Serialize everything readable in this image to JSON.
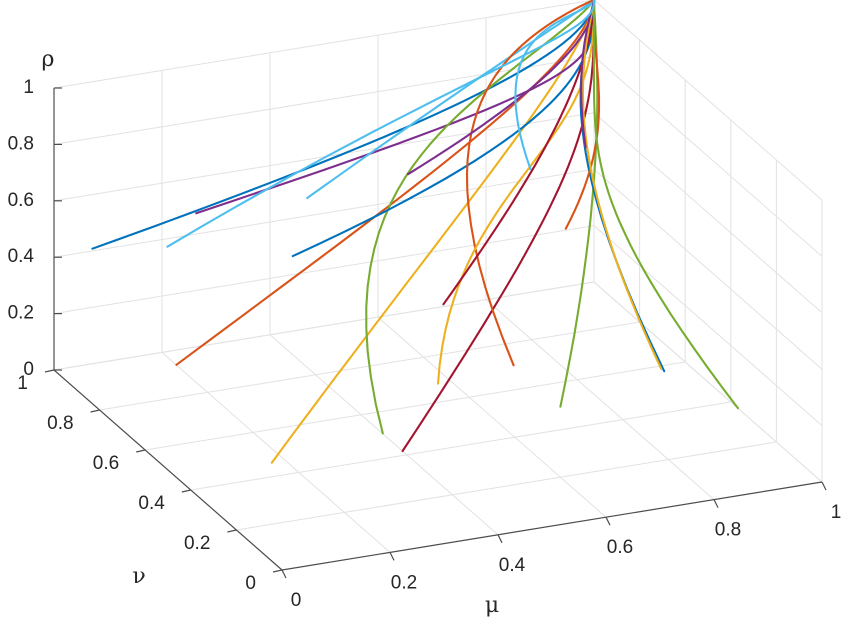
{
  "chart_data": {
    "type": "line",
    "subtype": "3d-trajectories",
    "title": "",
    "xlabel": "μ",
    "ylabel": "ν",
    "zlabel": "ρ",
    "xlim": [
      0,
      1
    ],
    "ylim": [
      0,
      1
    ],
    "zlim": [
      0,
      1
    ],
    "x_ticks": [
      "0",
      "0.2",
      "0.4",
      "0.6",
      "0.8",
      "1"
    ],
    "y_ticks": [
      "0",
      "0.2",
      "0.4",
      "0.6",
      "0.8",
      "1"
    ],
    "z_ticks": [
      "0",
      "0.2",
      "0.4",
      "0.6",
      "0.8",
      "1"
    ],
    "grid": true,
    "legend": "none",
    "endpoint": [
      1,
      1,
      1
    ],
    "colors": [
      "#0072BD",
      "#D95319",
      "#EDB120",
      "#7E2F8E",
      "#77AC30",
      "#4DBEEE",
      "#A2142F"
    ],
    "series": [
      {
        "start": [
          0.05,
          0.95,
          0.45
        ]
      },
      {
        "start": [
          0.1,
          0.7,
          0.2
        ]
      },
      {
        "start": [
          0.15,
          0.4,
          0.05
        ]
      },
      {
        "start": [
          0.2,
          0.85,
          0.6
        ]
      },
      {
        "start": [
          0.25,
          0.15,
          0.3
        ]
      },
      {
        "start": [
          0.3,
          0.6,
          0.8
        ]
      },
      {
        "start": [
          0.35,
          0.3,
          0.1
        ]
      },
      {
        "start": [
          0.4,
          0.9,
          0.35
        ]
      },
      {
        "start": [
          0.45,
          0.05,
          0.55
        ]
      },
      {
        "start": [
          0.5,
          0.5,
          0.15
        ]
      },
      {
        "start": [
          0.55,
          0.75,
          0.7
        ]
      },
      {
        "start": [
          0.6,
          0.2,
          0.25
        ]
      },
      {
        "start": [
          0.65,
          0.45,
          0.9
        ]
      },
      {
        "start": [
          0.7,
          0.95,
          0.05
        ]
      },
      {
        "start": [
          0.75,
          0.1,
          0.4
        ]
      },
      {
        "start": [
          0.8,
          0.65,
          0.5
        ]
      },
      {
        "start": [
          0.85,
          0.35,
          0.2
        ]
      },
      {
        "start": [
          0.9,
          0.8,
          0.65
        ]
      },
      {
        "start": [
          0.95,
          0.25,
          0.1
        ]
      },
      {
        "start": [
          0.02,
          0.55,
          0.75
        ]
      }
    ]
  }
}
